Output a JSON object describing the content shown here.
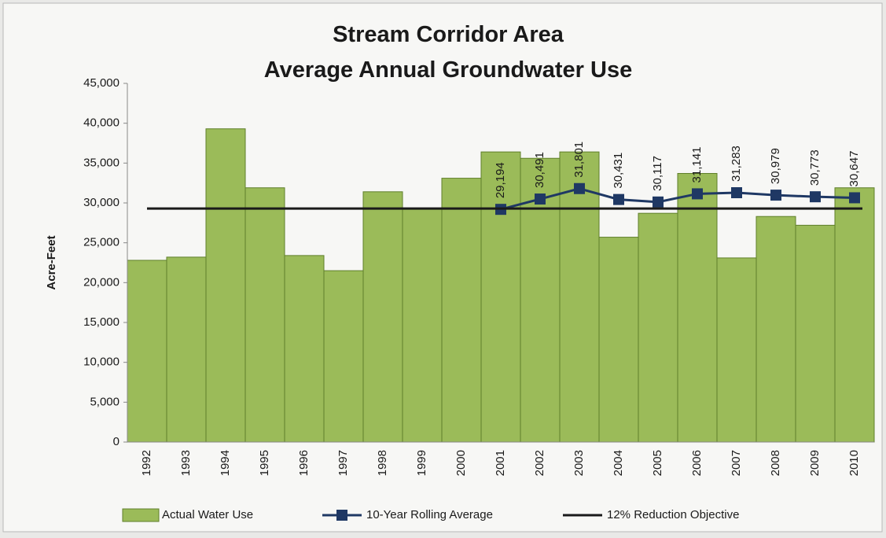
{
  "chart_data": {
    "type": "bar",
    "title": [
      "Stream Corridor Area",
      "Average Annual Groundwater Use"
    ],
    "y_label": "Acre-Feet",
    "categories": [
      "1992",
      "1993",
      "1994",
      "1995",
      "1996",
      "1997",
      "1998",
      "1999",
      "2000",
      "2001",
      "2002",
      "2003",
      "2004",
      "2005",
      "2006",
      "2007",
      "2008",
      "2009",
      "2010"
    ],
    "series": [
      {
        "name": "Actual Water Use",
        "type": "bar",
        "color": "#9bbb59",
        "values": [
          22800,
          23200,
          39300,
          31900,
          23400,
          21500,
          31400,
          29300,
          33100,
          36400,
          35600,
          36400,
          25700,
          28700,
          33700,
          23100,
          28300,
          27200,
          31900
        ]
      },
      {
        "name": "10-Year Rolling Average",
        "type": "line",
        "color": "#1f3864",
        "values": [
          null,
          null,
          null,
          null,
          null,
          null,
          null,
          null,
          null,
          29194,
          30491,
          31801,
          30431,
          30117,
          31141,
          31283,
          30979,
          30773,
          30647
        ],
        "value_labels": [
          null,
          null,
          null,
          null,
          null,
          null,
          null,
          null,
          null,
          "29,194",
          "30,491",
          "31,801",
          "30,431",
          "30,117",
          "31,141",
          "31,283",
          "30,979",
          "30,773",
          "30,647"
        ]
      },
      {
        "name": "12% Reduction Objective",
        "type": "hline",
        "color": "#1a1a1a",
        "value": 29300
      }
    ],
    "ylim": [
      0,
      45000
    ],
    "yticks": [
      0,
      {
        "value": 5000,
        "label": "5,000"
      },
      {
        "value": 10000,
        "label": "10,000"
      },
      {
        "value": 15000,
        "label": "15,000"
      },
      {
        "value": 20000,
        "label": "20,000"
      },
      {
        "value": 25000,
        "label": "25,000"
      },
      {
        "value": 30000,
        "label": "30,000"
      },
      {
        "value": 35000,
        "label": "35,000"
      },
      {
        "value": 40000,
        "label": "40,000"
      },
      {
        "value": 45000,
        "label": "45,000"
      }
    ],
    "legend": "bottom"
  }
}
